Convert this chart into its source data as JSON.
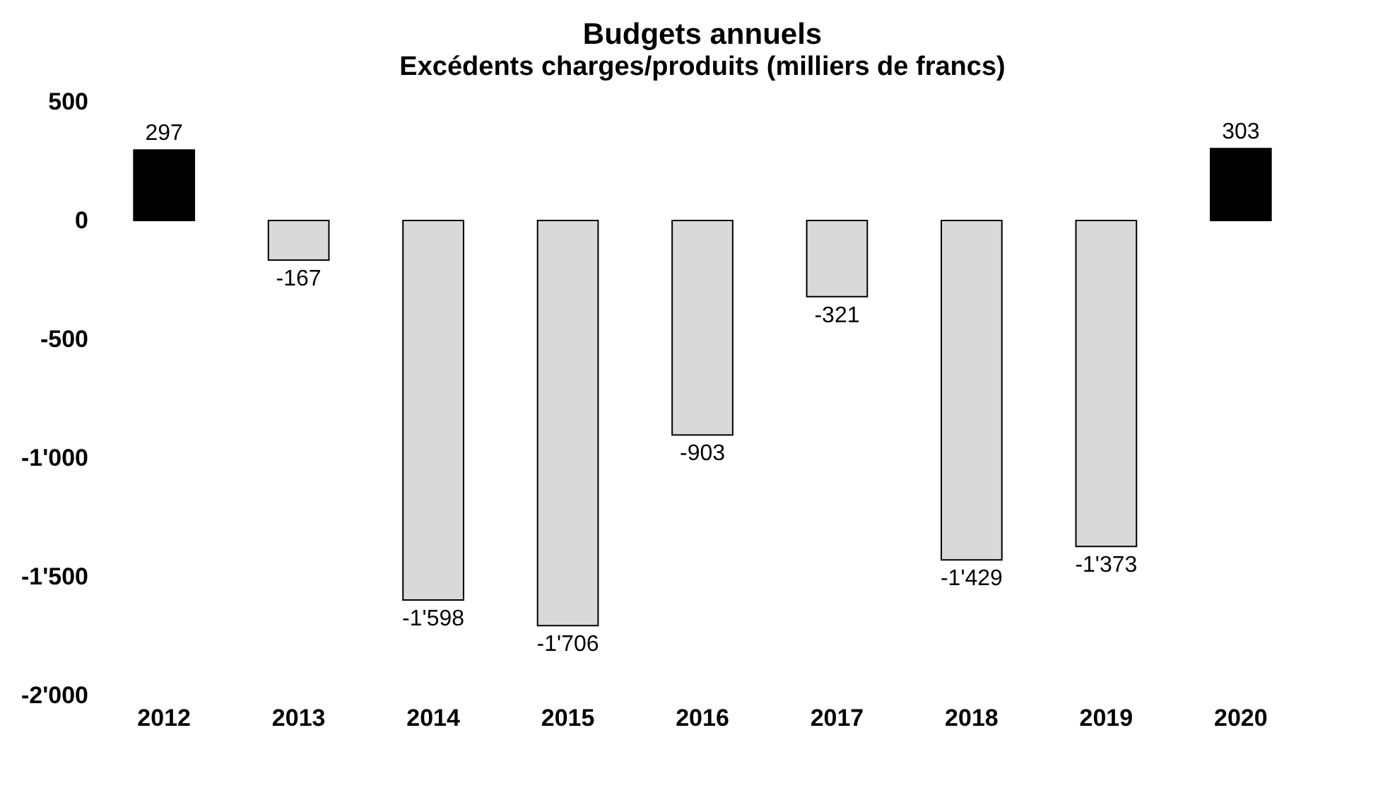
{
  "chart_data": {
    "type": "bar",
    "title": "Budgets annuels",
    "subtitle": "Excédents charges/produits (milliers de francs)",
    "categories": [
      "2012",
      "2013",
      "2014",
      "2015",
      "2016",
      "2017",
      "2018",
      "2019",
      "2020"
    ],
    "values": [
      297,
      -167,
      -1598,
      -1706,
      -903,
      -321,
      -1429,
      -1373,
      303
    ],
    "colors": [
      "#000000",
      "#d9d9d9",
      "#d9d9d9",
      "#d9d9d9",
      "#d9d9d9",
      "#d9d9d9",
      "#d9d9d9",
      "#d9d9d9",
      "#000000"
    ],
    "value_labels": [
      "297",
      "-167",
      "-1'598",
      "-1'706",
      "-903",
      "-321",
      "-1'429",
      "-1'373",
      "303"
    ],
    "ylim": [
      -2000,
      500
    ],
    "yticks": [
      {
        "value": -2000,
        "label": "-2'000"
      },
      {
        "value": -1500,
        "label": "-1'500"
      },
      {
        "value": -1000,
        "label": "-1'000"
      },
      -500,
      0,
      500
    ],
    "grid": false
  }
}
